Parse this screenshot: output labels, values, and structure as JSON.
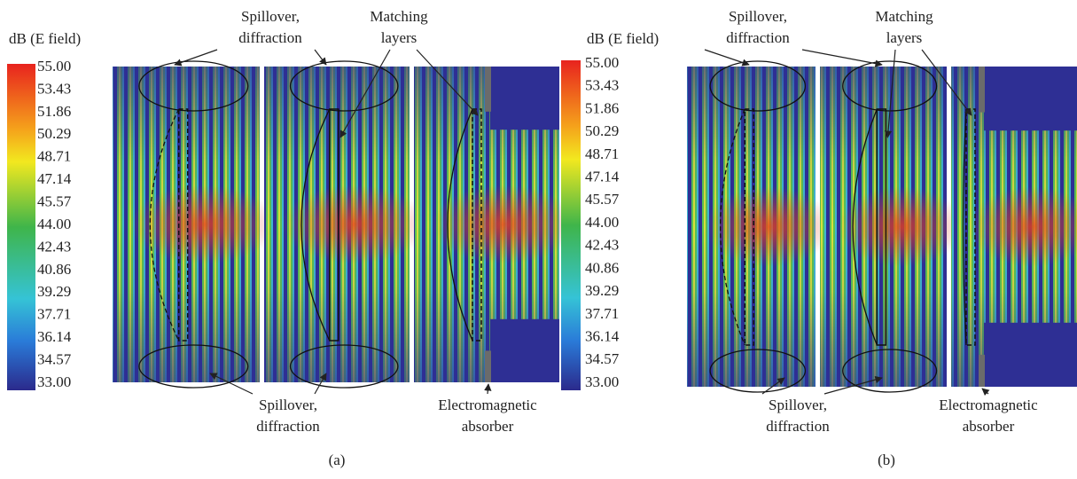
{
  "panels": [
    {
      "colorbar": {
        "title": "dB (E field)",
        "labels": [
          "55.00",
          "53.43",
          "51.86",
          "50.29",
          "48.71",
          "47.14",
          "45.57",
          "44.00",
          "42.43",
          "40.86",
          "39.29",
          "37.71",
          "36.14",
          "34.57",
          "33.00"
        ]
      },
      "annotations": {
        "top_left": [
          "Spillover,",
          "diffraction"
        ],
        "top_right": [
          "Matching",
          "layers"
        ],
        "bottom_left": [
          "Spillover,",
          "diffraction"
        ],
        "bottom_right": [
          "Electromagnetic",
          "absorber"
        ]
      },
      "label": "(a)"
    },
    {
      "colorbar": {
        "title": "dB (E field)",
        "labels": [
          "55.00",
          "53.43",
          "51.86",
          "50.29",
          "48.71",
          "47.14",
          "45.57",
          "44.00",
          "42.43",
          "40.86",
          "39.29",
          "37.71",
          "36.14",
          "34.57",
          "33.00"
        ]
      },
      "annotations": {
        "top_left": [
          "Spillover,",
          "diffraction"
        ],
        "top_right": [
          "Matching",
          "layers"
        ],
        "bottom_left": [
          "Spillover,",
          "diffraction"
        ],
        "bottom_right": [
          "Electromagnetic",
          "absorber"
        ]
      },
      "label": "(b)"
    }
  ]
}
